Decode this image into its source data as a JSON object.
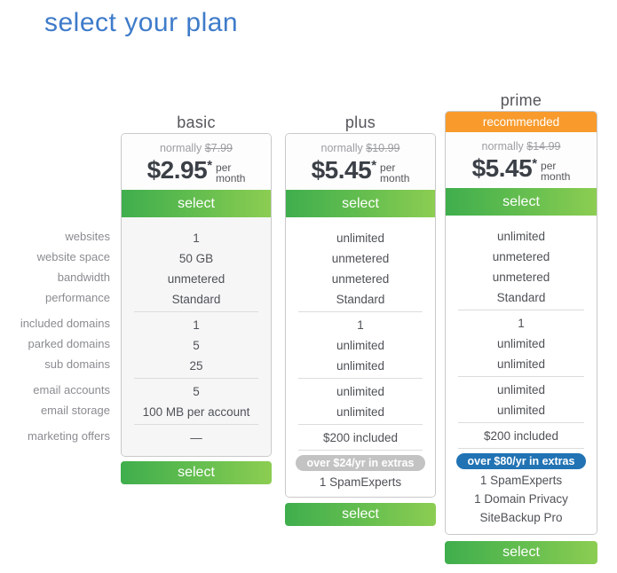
{
  "page": {
    "title": "select your plan"
  },
  "colors": {
    "title_blue": "#3e7bca",
    "select_green_left": "#3fae4d",
    "select_green_right": "#8ccd52",
    "recommended_orange": "#f89b2c",
    "extras_badge_gray": "#c3c3c3",
    "extras_badge_blue": "#2173b4"
  },
  "feature_labels": [
    "websites",
    "website space",
    "bandwidth",
    "performance",
    "included domains",
    "parked domains",
    "sub domains",
    "email accounts",
    "email storage",
    "marketing offers"
  ],
  "plans": [
    {
      "name": "basic",
      "normally_label": "normally",
      "original_price": "$7.99",
      "price": "$2.95",
      "asterisk": "*",
      "per_label": "per",
      "month_label": "month",
      "select_label": "select",
      "features": [
        "1",
        "50 GB",
        "unmetered",
        "Standard",
        "1",
        "5",
        "25",
        "5",
        "100 MB per account",
        "—"
      ]
    },
    {
      "name": "plus",
      "normally_label": "normally",
      "original_price": "$10.99",
      "price": "$5.45",
      "asterisk": "*",
      "per_label": "per",
      "month_label": "month",
      "select_label": "select",
      "features": [
        "unlimited",
        "unmetered",
        "unmetered",
        "Standard",
        "1",
        "unlimited",
        "unlimited",
        "unlimited",
        "unlimited",
        "$200 included"
      ],
      "extras_badge": "over $24/yr in extras",
      "extras": [
        "1 SpamExperts"
      ]
    },
    {
      "name": "prime",
      "recommended_label": "recommended",
      "normally_label": "normally",
      "original_price": "$14.99",
      "price": "$5.45",
      "asterisk": "*",
      "per_label": "per",
      "month_label": "month",
      "select_label": "select",
      "features": [
        "unlimited",
        "unmetered",
        "unmetered",
        "Standard",
        "1",
        "unlimited",
        "unlimited",
        "unlimited",
        "unlimited",
        "$200 included"
      ],
      "extras_badge": "over $80/yr in extras",
      "extras": [
        "1 SpamExperts",
        "1 Domain Privacy",
        "SiteBackup Pro"
      ]
    }
  ]
}
